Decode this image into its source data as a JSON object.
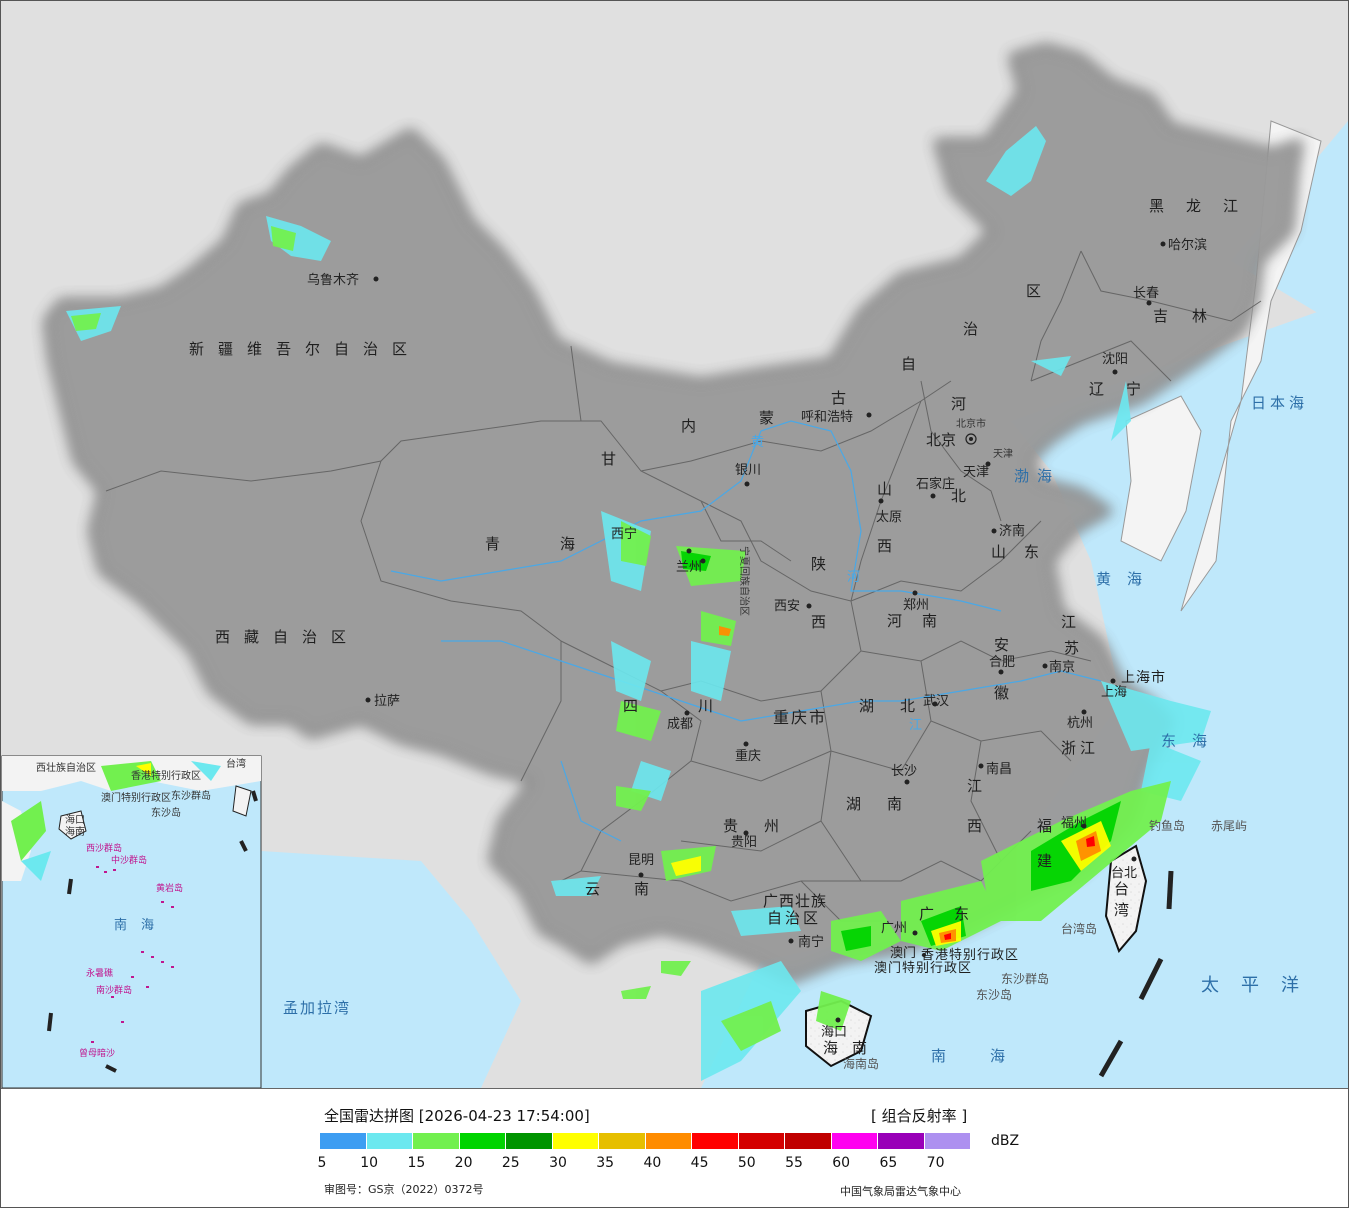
{
  "legend": {
    "title": "全国雷达拼图 [2026-04-23 17:54:00]",
    "product": "[ 组合反射率 ]",
    "unit": "dBZ",
    "colors": [
      "#3d9df2",
      "#6ce8ef",
      "#72f04f",
      "#00d400",
      "#009400",
      "#ffff00",
      "#e6bf00",
      "#ff8c00",
      "#ff0000",
      "#d40000",
      "#c00000",
      "#ff00f0",
      "#9900b8",
      "#ad90f0"
    ],
    "ticks": [
      "5",
      "10",
      "15",
      "20",
      "25",
      "30",
      "35",
      "40",
      "45",
      "50",
      "55",
      "60",
      "65",
      "70"
    ],
    "approval": "审图号：GS京（2022）0372号",
    "credit": "中国气象局雷达气象中心"
  },
  "provinces": {
    "xinjiang": "新疆维吾尔自治区",
    "xizang": "西藏自治区",
    "qinghai": "青海",
    "gansu": "甘",
    "neimenggu_1": "内",
    "neimenggu_2": "蒙",
    "neimenggu_3": "古",
    "neimenggu_4": "自",
    "neimenggu_5": "治",
    "neimenggu_6": "区",
    "heilongjiang": "黑龙江",
    "jilin": "吉林",
    "liaoning": "辽宁",
    "hebei_1": "河",
    "hebei_2": "北",
    "shanxi_1": "山",
    "shanxi_2": "西",
    "shaanxi_1": "陕",
    "shaanxi_2": "西",
    "henan": "河南",
    "shandong": "山东",
    "jiangsu_1": "江",
    "jiangsu_2": "苏",
    "anhui_1": "安",
    "anhui_2": "徽",
    "hubei": "湖北",
    "sichuan_1": "四",
    "sichuan_2": "川",
    "chongqing": "重庆市",
    "hunan": "湖南",
    "jiangxi_1": "江",
    "jiangxi_2": "西",
    "zhejiang": "浙江",
    "fujian_1": "福",
    "fujian_2": "建",
    "guizhou": "贵州",
    "yunnan": "云南",
    "guangxi_1": "广西壮族",
    "guangxi_2": "自治区",
    "guangdong": "广东",
    "hainan": "海南",
    "taiwan_1": "台",
    "taiwan_2": "湾",
    "shanghai": "上海市",
    "ningxia": "宁夏回族自治区",
    "hk": "香港特别行政区",
    "macau": "澳门特别行政区",
    "beijing_small": "北京市",
    "tianjin_small": "天津"
  },
  "cities": {
    "urumqi": "乌鲁木齐",
    "lhasa": "拉萨",
    "xining": "西宁",
    "lanzhou": "兰州",
    "yinchuan": "银川",
    "hohhot": "呼和浩特",
    "beijing": "北京",
    "tianjin": "天津",
    "shijiazhuang": "石家庄",
    "taiyuan": "太原",
    "jinan": "济南",
    "zhengzhou": "郑州",
    "xian": "西安",
    "hefei": "合肥",
    "nanjing": "南京",
    "shanghai": "上海",
    "hangzhou": "杭州",
    "wuhan": "武汉",
    "chengdu": "成都",
    "chongqing": "重庆",
    "changsha": "长沙",
    "nanchang": "南昌",
    "fuzhou": "福州",
    "guiyang": "贵阳",
    "kunming": "昆明",
    "nanning": "南宁",
    "guangzhou": "广州",
    "macau": "澳门",
    "haikou": "海口",
    "taibei": "台北",
    "harbin": "哈尔滨",
    "changchun": "长春",
    "shenyang": "沈阳"
  },
  "places": {
    "bohai": "渤海",
    "huanghai": "黄海",
    "donghai": "东海",
    "nanhai": "南海",
    "riben_hai": "日本海",
    "taipingyang": "太平洋",
    "mengjiala": "孟加拉湾",
    "diaoyu": "钓鱼岛",
    "chiwei": "赤尾屿",
    "taiwan_dao": "台湾岛",
    "dongsha_qundao": "东沙群岛",
    "dongsha_dao": "东沙岛",
    "hainan_dao": "海南岛",
    "huanghe": "黄",
    "changjiang": "江",
    "he": "河"
  },
  "inset": {
    "nanhai": "南海",
    "haikou": "海口",
    "hainan": "海南",
    "macau": "澳门特别行政区",
    "hk": "香港特别行政区",
    "guangxi": "西壮族自治区",
    "taiwan": "台湾",
    "dongsha": "东沙群岛",
    "dongsha_dao": "东沙岛",
    "xisha": "西沙群岛",
    "zhongsha": "中沙群岛",
    "huangyan": "黄岩岛",
    "nansha": "南沙群岛",
    "yongshu": "永暑礁",
    "zengmu": "曾母暗沙"
  },
  "colors": {
    "land": "#f2f2f2",
    "sea": "#bfe8fb",
    "outside": "#e0e0e0",
    "border": "#111111",
    "province_border": "#666666",
    "river": "#4aa8e6"
  }
}
